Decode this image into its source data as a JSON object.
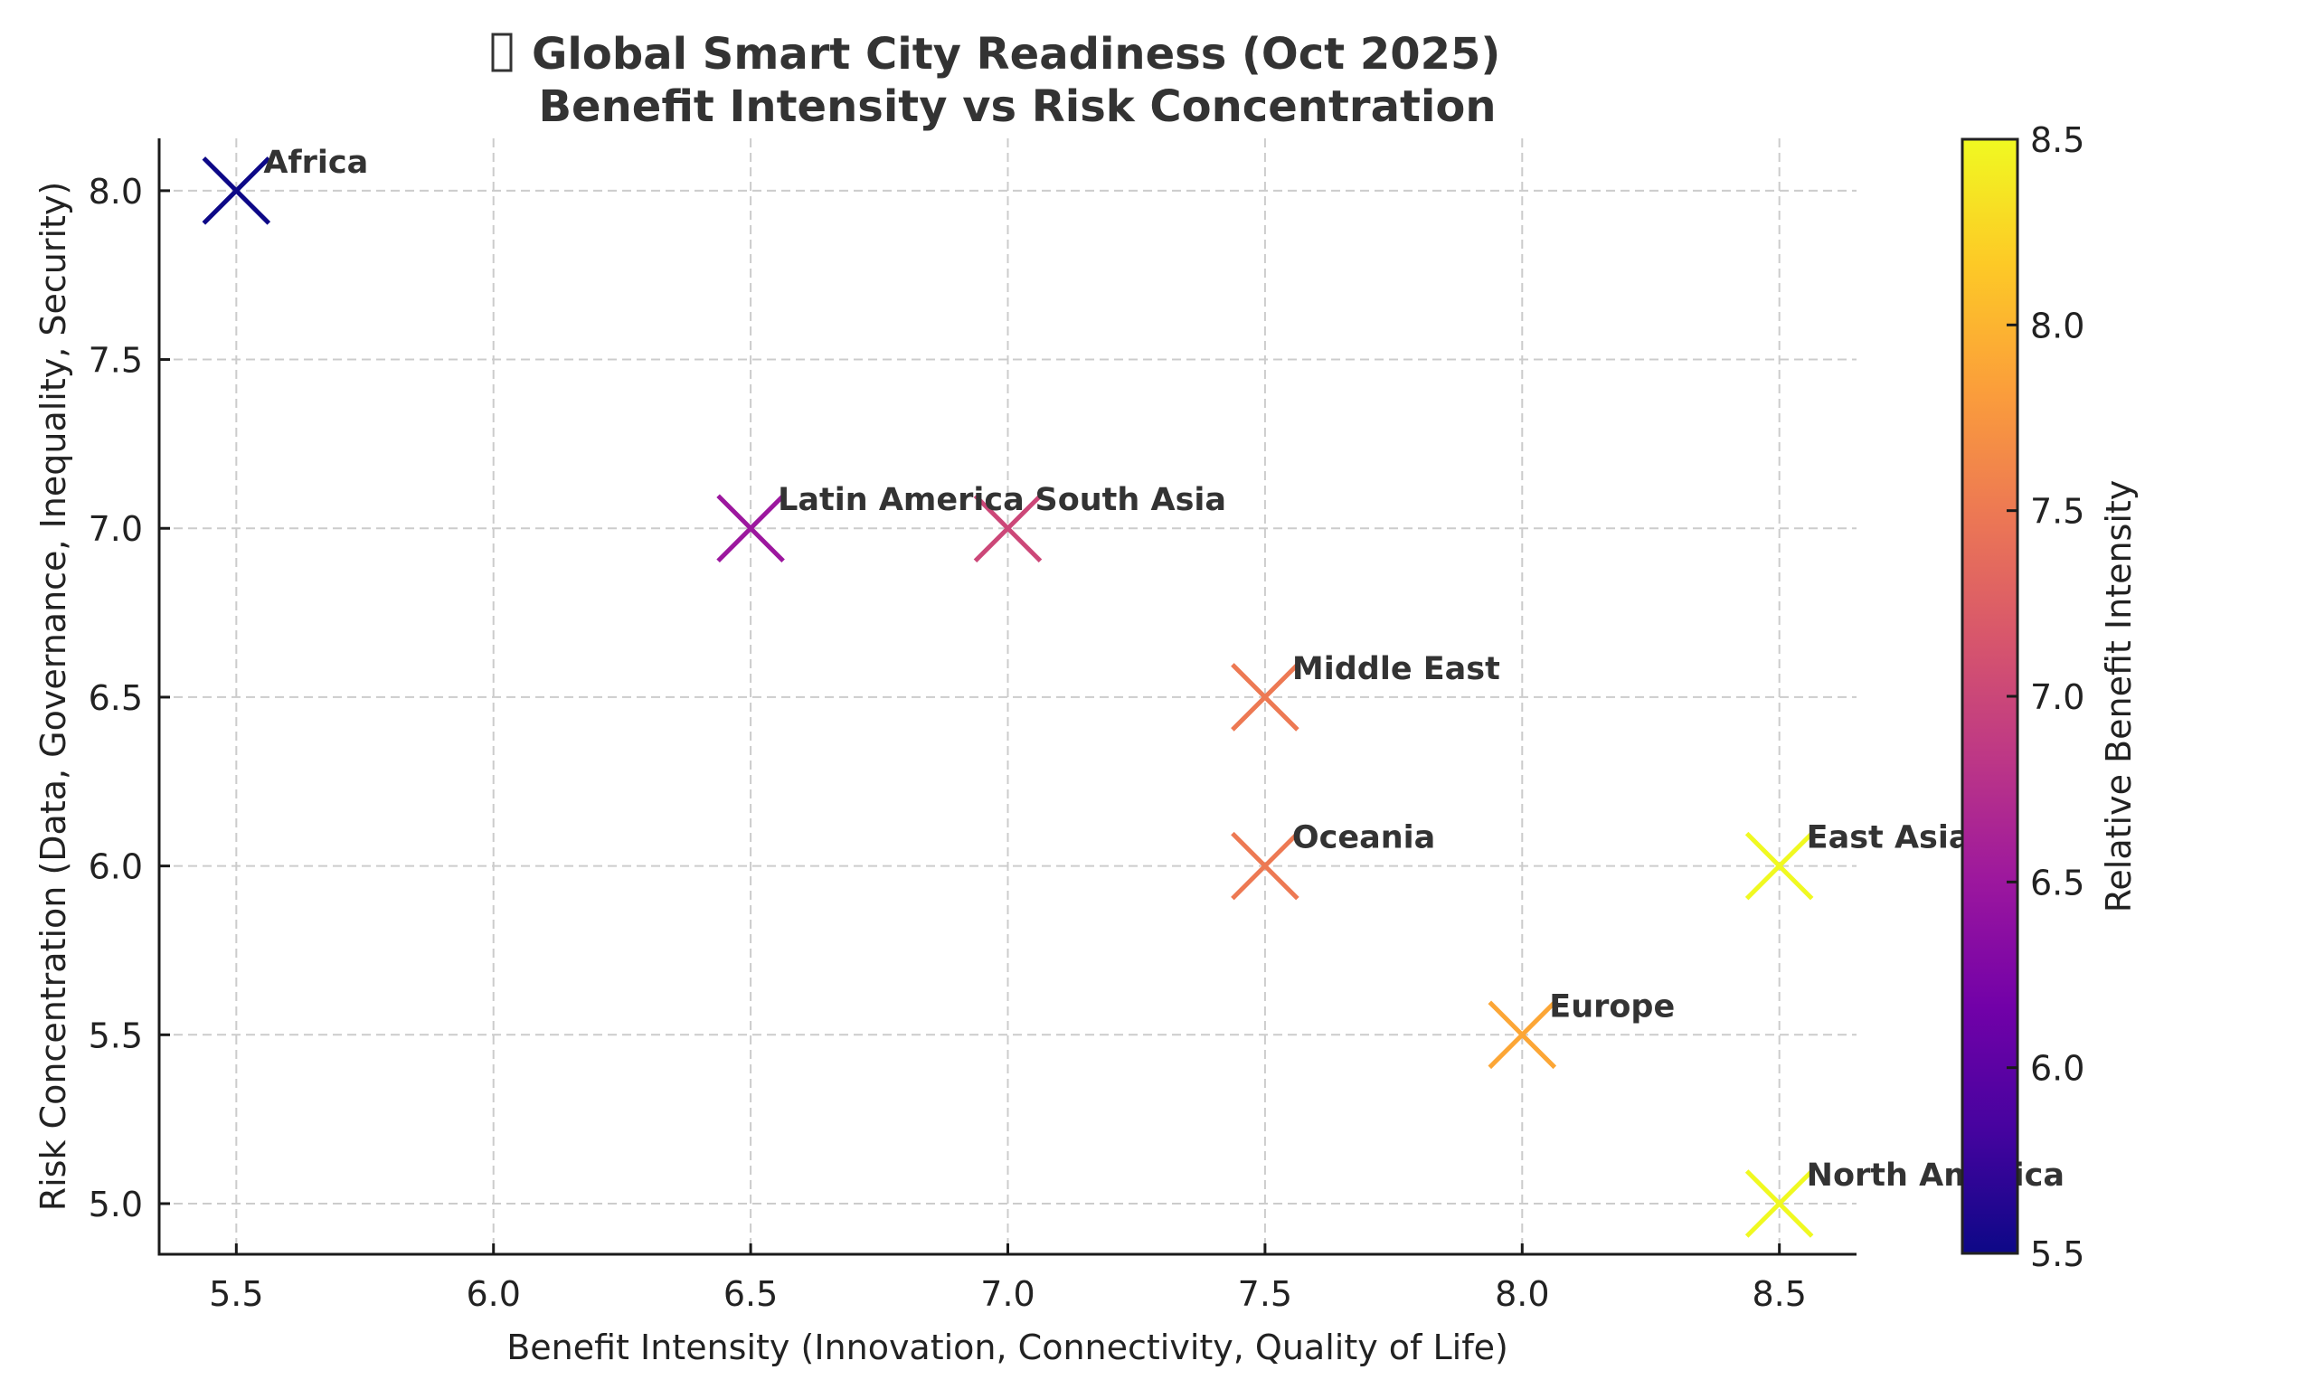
{
  "chart_data": {
    "type": "scatter",
    "title_icon": "missing-glyph-box",
    "title_line1": "Global Smart City Readiness (Oct 2025)",
    "title_line2": "Benefit Intensity vs Risk Concentration",
    "xlabel": "Benefit Intensity (Innovation, Connectivity, Quality of Life)",
    "ylabel": "Risk Concentration (Data, Governance, Inequality, Security)",
    "xlim": [
      5.35,
      8.65
    ],
    "ylim": [
      4.85,
      8.155
    ],
    "xticks": [
      5.5,
      6.0,
      6.5,
      7.0,
      7.5,
      8.0,
      8.5
    ],
    "xtick_labels": [
      "5.5",
      "6.0",
      "6.5",
      "7.0",
      "7.5",
      "8.0",
      "8.5"
    ],
    "yticks": [
      5.0,
      5.5,
      6.0,
      6.5,
      7.0,
      7.5,
      8.0
    ],
    "ytick_labels": [
      "5.0",
      "5.5",
      "6.0",
      "6.5",
      "7.0",
      "7.5",
      "8.0"
    ],
    "grid": true,
    "marker": "x",
    "colormap": "plasma",
    "colorbar": {
      "label": "Relative Benefit Intensity",
      "range": [
        5.5,
        8.5
      ],
      "ticks": [
        5.5,
        6.0,
        6.5,
        7.0,
        7.5,
        8.0,
        8.5
      ],
      "tick_labels": [
        "5.5",
        "6.0",
        "6.5",
        "7.0",
        "7.5",
        "8.0",
        "8.5"
      ],
      "stops": [
        "#0d0887",
        "#46039f",
        "#7201a8",
        "#9c179e",
        "#bd3786",
        "#d8576b",
        "#ed7953",
        "#fb9f3a",
        "#fdca26",
        "#f0f921"
      ]
    },
    "points": [
      {
        "label": "Africa",
        "x": 5.5,
        "y": 8.0,
        "color": "#0d0887"
      },
      {
        "label": "Latin America",
        "x": 6.5,
        "y": 7.0,
        "color": "#9c179e"
      },
      {
        "label": "South Asia",
        "x": 7.0,
        "y": 7.0,
        "color": "#cc4778"
      },
      {
        "label": "Middle East",
        "x": 7.5,
        "y": 6.5,
        "color": "#ed7953"
      },
      {
        "label": "Oceania",
        "x": 7.5,
        "y": 6.0,
        "color": "#ed7953"
      },
      {
        "label": "East Asia",
        "x": 8.5,
        "y": 6.0,
        "color": "#f0f921"
      },
      {
        "label": "Europe",
        "x": 8.0,
        "y": 5.5,
        "color": "#fca636"
      },
      {
        "label": "North America",
        "x": 8.5,
        "y": 5.0,
        "color": "#f0f921"
      }
    ]
  }
}
